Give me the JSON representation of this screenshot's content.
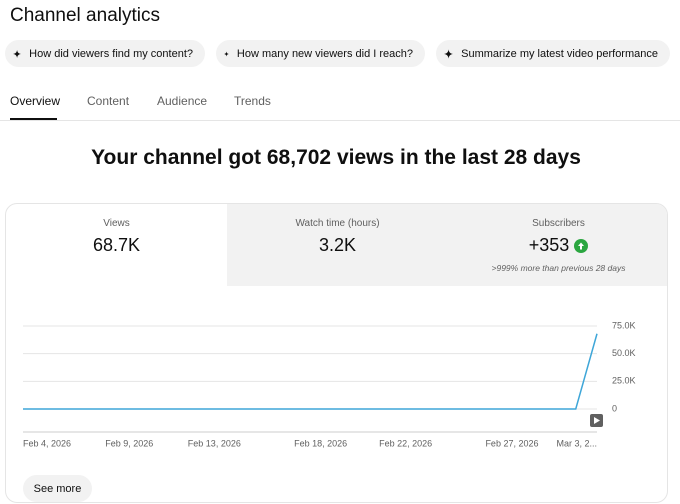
{
  "header": {
    "title": "Channel analytics"
  },
  "chips": [
    "How did viewers find my content?",
    "How many new viewers did I reach?",
    "Summarize my latest video performance"
  ],
  "tabs": [
    "Overview",
    "Content",
    "Audience",
    "Trends"
  ],
  "headline": "Your channel got 68,702 views in the last 28 days",
  "metrics": [
    {
      "label": "Views",
      "value": "68.7K"
    },
    {
      "label": "Watch time (hours)",
      "value": "3.2K"
    },
    {
      "label": "Subscribers",
      "value": "+353",
      "note": ">999% more than previous 28 days"
    }
  ],
  "chart_data": {
    "type": "line",
    "categories": [
      "Feb 4, 2026",
      null,
      null,
      null,
      null,
      "Feb 9, 2026",
      null,
      null,
      null,
      "Feb 13, 2026",
      null,
      null,
      null,
      null,
      "Feb 18, 2026",
      null,
      null,
      null,
      "Feb 22, 2026",
      null,
      null,
      null,
      null,
      "Feb 27, 2026",
      null,
      null,
      null,
      "Mar 3, 2..."
    ],
    "series": [
      {
        "name": "Views",
        "color": "#3ea6d8",
        "values": [
          0,
          0,
          0,
          0,
          0,
          0,
          0,
          0,
          0,
          0,
          0,
          0,
          0,
          0,
          0,
          0,
          0,
          0,
          0,
          0,
          0,
          0,
          0,
          0,
          0,
          0,
          0,
          68000
        ]
      }
    ],
    "ylim": [
      0,
      75000
    ],
    "yticks": [
      0,
      {
        "value": 25000,
        "label": "25.0K"
      },
      {
        "value": 50000,
        "label": "50.0K"
      },
      {
        "value": 75000,
        "label": "75.0K"
      }
    ],
    "grid": true
  },
  "see_more": "See more"
}
